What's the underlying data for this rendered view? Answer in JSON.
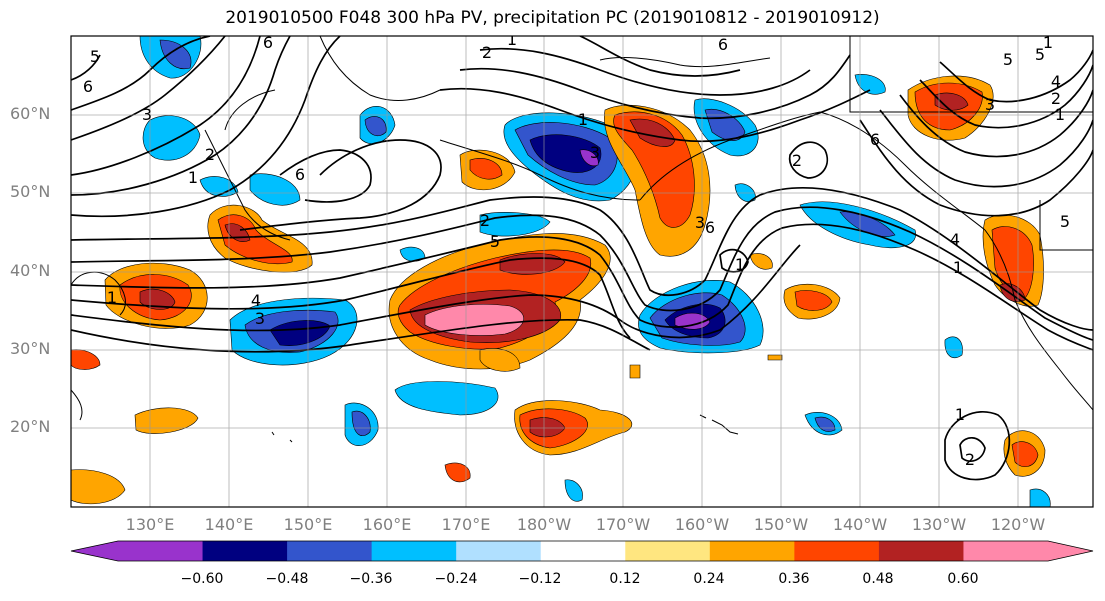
{
  "title": "2019010500 F048 300 hPa PV, precipitation PC (2019010812 - 2019010912)",
  "lat_labels": [
    "60°N",
    "50°N",
    "40°N",
    "30°N",
    "20°N"
  ],
  "lon_labels": [
    "130°E",
    "140°E",
    "150°E",
    "160°E",
    "170°E",
    "180°W",
    "170°W",
    "160°W",
    "150°W",
    "140°W",
    "130°W",
    "120°W"
  ],
  "colorbar": {
    "colors": [
      "#9933cc",
      "#000080",
      "#3355cc",
      "#00bfff",
      "#b0e0ff",
      "#ffffff",
      "#ffe680",
      "#ffa500",
      "#ff4500",
      "#b22222",
      "#ff88aa"
    ],
    "tick_labels": [
      "−0.60",
      "−0.48",
      "−0.36",
      "−0.24",
      "−0.12",
      "0.12",
      "0.24",
      "0.36",
      "0.48",
      "0.60"
    ]
  },
  "contour_labels": [
    "5",
    "6",
    "2",
    "1",
    "6",
    "3",
    "1",
    "6",
    "1",
    "2",
    "6",
    "5",
    "4",
    "3",
    "1",
    "6",
    "5",
    "3",
    "3",
    "5",
    "4",
    "2",
    "1",
    "3",
    "4",
    "1",
    "1",
    "2",
    "2",
    "5",
    "6",
    "1",
    "1",
    "2"
  ]
}
